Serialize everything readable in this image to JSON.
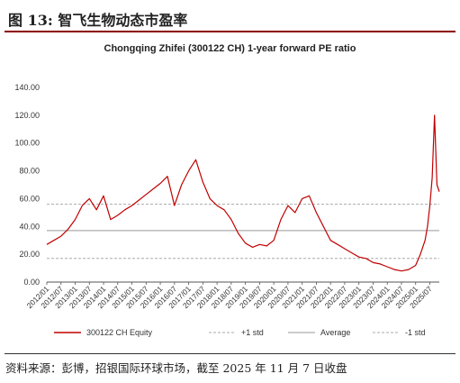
{
  "figure": {
    "title": "图 13: 智飞生物动态市盈率",
    "source": "资料来源：彭博，招银国际环球市场，截至 2025 年 11 月 7 日收盘"
  },
  "chart_data": {
    "type": "line",
    "title": "Chongqing Zhifei (300122 CH) 1-year forward PE ratio",
    "xlabel": "",
    "ylabel": "",
    "ylim": [
      0,
      140
    ],
    "yticks": [
      "0.00",
      "20.00",
      "40.00",
      "60.00",
      "80.00",
      "100.00",
      "120.00",
      "140.00"
    ],
    "xticks": [
      "2012/01",
      "2012/07",
      "2013/01",
      "2013/07",
      "2014/01",
      "2014/07",
      "2015/01",
      "2015/07",
      "2016/01",
      "2016/07",
      "2017/01",
      "2017/07",
      "2018/01",
      "2018/07",
      "2019/01",
      "2019/07",
      "2020/01",
      "2020/07",
      "2021/01",
      "2021/07",
      "2022/01",
      "2022/07",
      "2023/01",
      "2023/07",
      "2024/01",
      "2024/07",
      "2025/01",
      "2025/07"
    ],
    "x_range": [
      "2012/01",
      "2025/11"
    ],
    "grid": false,
    "legend_position": "bottom",
    "series": [
      {
        "name": "300122 CH Equity",
        "color": "#c00000",
        "style": "solid",
        "x": [
          "2012/01",
          "2012/04",
          "2012/07",
          "2012/10",
          "2013/01",
          "2013/04",
          "2013/07",
          "2013/10",
          "2014/01",
          "2014/04",
          "2014/07",
          "2014/10",
          "2015/01",
          "2015/04",
          "2015/07",
          "2015/10",
          "2016/01",
          "2016/04",
          "2016/07",
          "2016/10",
          "2017/01",
          "2017/04",
          "2017/07",
          "2017/10",
          "2018/01",
          "2018/04",
          "2018/07",
          "2018/10",
          "2019/01",
          "2019/04",
          "2019/07",
          "2019/10",
          "2020/01",
          "2020/04",
          "2020/07",
          "2020/10",
          "2021/01",
          "2021/04",
          "2021/07",
          "2021/10",
          "2022/01",
          "2022/04",
          "2022/07",
          "2022/10",
          "2023/01",
          "2023/04",
          "2023/07",
          "2023/10",
          "2024/01",
          "2024/04",
          "2024/07",
          "2024/10",
          "2025/01",
          "2025/03",
          "2025/05",
          "2025/06",
          "2025/07",
          "2025/08",
          "2025/09",
          "2025/10",
          "2025/11"
        ],
        "values": [
          27,
          30,
          33,
          38,
          45,
          55,
          60,
          52,
          62,
          45,
          48,
          52,
          55,
          59,
          63,
          67,
          71,
          76,
          55,
          70,
          80,
          88,
          72,
          60,
          55,
          52,
          45,
          35,
          28,
          25,
          27,
          26,
          30,
          45,
          55,
          50,
          60,
          62,
          50,
          40,
          30,
          27,
          24,
          21,
          18,
          17,
          14,
          13,
          11,
          9,
          8,
          9,
          12,
          20,
          30,
          40,
          55,
          75,
          120,
          70,
          65
        ]
      },
      {
        "name": "+1 std",
        "color": "#aaaaaa",
        "style": "dashed",
        "value": 56
      },
      {
        "name": "Average",
        "color": "#999999",
        "style": "solid",
        "value": 37
      },
      {
        "name": "-1 std",
        "color": "#aaaaaa",
        "style": "dashed",
        "value": 17
      }
    ]
  }
}
